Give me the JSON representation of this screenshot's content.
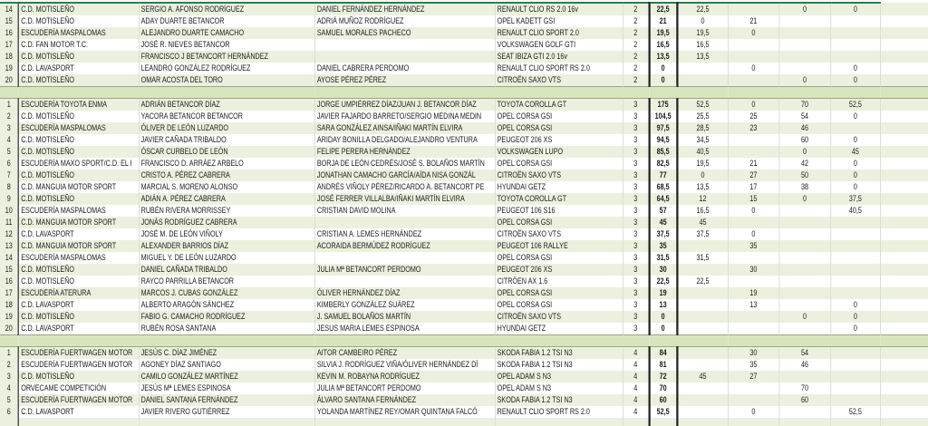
{
  "colors": {
    "stripe": "#ebf1de",
    "band": "#d8e4bc",
    "accent_line": "#2e7d4a"
  },
  "groups": [
    {
      "rows": [
        {
          "pos": "14",
          "club": "C.D. MOTISLEÑO",
          "driver": "SERGIO A. AFONSO RODRÍGUEZ",
          "codriver": "DANIEL FERNÁNDEZ HERNÁNDEZ",
          "car": "RENAULT CLIO RS 2.0 16v",
          "cat": "2",
          "pts": "22,5",
          "r": [
            "22,5",
            "",
            "0",
            "0",
            ""
          ]
        },
        {
          "pos": "15",
          "club": "C.D. MOTISLEÑO",
          "driver": "ADAY DUARTE BETANCOR",
          "codriver": "ADRIÁ MUÑOZ RODRÍGUEZ",
          "car": "OPEL KADETT GSI",
          "cat": "2",
          "pts": "21",
          "r": [
            "0",
            "21",
            "",
            "",
            ""
          ]
        },
        {
          "pos": "16",
          "club": "ESCUDERÍA MASPALOMAS",
          "driver": "ALEJANDRO DUARTE CAMACHO",
          "codriver": "SAMUEL MORALES PACHECO",
          "car": "RENAULT CLIO SPORT 2.0",
          "cat": "2",
          "pts": "19,5",
          "r": [
            "19,5",
            "0",
            "",
            "",
            ""
          ]
        },
        {
          "pos": "17",
          "club": "C.D. FAN MOTOR T.C.",
          "driver": "JOSÉ R. NIEVES BETANCOR",
          "codriver": "",
          "car": "VOLKSWAGEN GOLF GTI",
          "cat": "2",
          "pts": "16,5",
          "r": [
            "16,5",
            "",
            "",
            "",
            ""
          ]
        },
        {
          "pos": "18",
          "club": "C.D. MOTISLEÑO",
          "driver": "FRANCISCO J BETANCORT HERNÁNDEZ",
          "codriver": "",
          "car": "SEAT IBIZA GTI 2.0 16v",
          "cat": "2",
          "pts": "13,5",
          "r": [
            "13,5",
            "",
            "",
            "",
            ""
          ]
        },
        {
          "pos": "19",
          "club": "C.D. LAVASPORT",
          "driver": "LEANDRO GONZÁLEZ RODRÍGUEZ",
          "codriver": "DANIEL CABRERA PERDOMO",
          "car": "RENAULT CLIO SPORT RS 2.0",
          "cat": "2",
          "pts": "0",
          "r": [
            "",
            "0",
            "",
            "0",
            ""
          ]
        },
        {
          "pos": "20",
          "club": "C.D. MOTISLEÑO",
          "driver": "OMAR ACOSTA DEL TORO",
          "codriver": "AYOSE PÉREZ PÉREZ",
          "car": "CITROËN SAXO VTS",
          "cat": "2",
          "pts": "0",
          "r": [
            "",
            "",
            "0",
            "0",
            ""
          ]
        }
      ]
    },
    {
      "rows": [
        {
          "pos": "1",
          "club": "ESCUDERÍA TOYOTA ENMA",
          "driver": "ADRIÁN BETANCOR DÍAZ",
          "codriver": "JORGE UMPIÉRREZ DÍAZ/JUAN J. BETANCOR DÍAZ",
          "car": "TOYOTA COROLLA GT",
          "cat": "3",
          "pts": "175",
          "r": [
            "52,5",
            "0",
            "70",
            "52,5",
            ""
          ]
        },
        {
          "pos": "2",
          "club": "C.D. MOTISLEÑO",
          "driver": "YACORA BETANCOR BETANCOR",
          "codriver": "JAVIER FAJARDO BARRETO/SERGIO MEDINA MEDIN",
          "car": "OPEL CORSA GSI",
          "cat": "3",
          "pts": "104,5",
          "r": [
            "25,5",
            "25",
            "54",
            "0",
            ""
          ]
        },
        {
          "pos": "3",
          "club": "ESCUDERÍA MASPALOMAS",
          "driver": "ÓLIVER DE LEÓN LUZARDO",
          "codriver": "SARA GONZÁLEZ AINSA/IÑAKI MARTÍN ELVIRA",
          "car": "OPEL CORSA GSI",
          "cat": "3",
          "pts": "97,5",
          "r": [
            "28,5",
            "23",
            "46",
            "",
            ""
          ]
        },
        {
          "pos": "4",
          "club": "C.D. MOTISLEÑO",
          "driver": "JAVIER CAÑADA TRIBALDO",
          "codriver": "ARIDAY BONILLA DELGADO/ALEJANDRO VENTURA",
          "car": "PEUGEOT 206 XS",
          "cat": "3",
          "pts": "94,5",
          "r": [
            "34,5",
            "",
            "60",
            "0",
            ""
          ]
        },
        {
          "pos": "5",
          "club": "C.D. MOTISLEÑO",
          "driver": "ÓSCAR CURBELO DE LEÓN",
          "codriver": "FELIPE PERERA HERNÁNDEZ",
          "car": "VOLKSWAGEN LUPO",
          "cat": "3",
          "pts": "85,5",
          "r": [
            "40,5",
            "",
            "0",
            "45",
            ""
          ]
        },
        {
          "pos": "6",
          "club": "ESCUDERÍA MAXO SPORT/C.D. EL I",
          "driver": "FRANCISCO D. ARRÁEZ ARBELO",
          "codriver": "BORJA DE LEÓN CEDRÉS/JOSÉ S. BOLAÑOS MARTÍN",
          "car": "OPEL CORSA GSI",
          "cat": "3",
          "pts": "82,5",
          "r": [
            "19,5",
            "21",
            "42",
            "0",
            ""
          ]
        },
        {
          "pos": "7",
          "club": "C.D. MOTISLEÑO",
          "driver": "CRISTO A. PÉREZ CABRERA",
          "codriver": "JONATHAN CAMACHO GARCÍA/AÍDA NISA GONZÁL",
          "car": "CITROËN SAXO VTS",
          "cat": "3",
          "pts": "77",
          "r": [
            "0",
            "27",
            "50",
            "0",
            ""
          ]
        },
        {
          "pos": "8",
          "club": "C.D. MANGUIA MOTOR SPORT",
          "driver": "MARCIAL S. MORENO ALONSO",
          "codriver": "ANDRÉS VIÑOLY PÉREZ/RICARDO A. BETANCORT PE",
          "car": "HYUNDAI GETZ",
          "cat": "3",
          "pts": "68,5",
          "r": [
            "13,5",
            "17",
            "38",
            "0",
            ""
          ]
        },
        {
          "pos": "9",
          "club": "C.D. MOTISLEÑO",
          "driver": "ADIÁN A. PÉREZ CABRERA",
          "codriver": "JOSÉ FERRER VILLALBA/IÑAKI MARTÍN ELVIRA",
          "car": "TOYOTA COROLLA GT",
          "cat": "3",
          "pts": "64,5",
          "r": [
            "12",
            "15",
            "0",
            "37,5",
            ""
          ]
        },
        {
          "pos": "10",
          "club": "ESCUDERÍA MASPALOMAS",
          "driver": "RUBÉN RIVERA MORRISSEY",
          "codriver": "CRISTIAN DAVID MOLINA",
          "car": "PEUGEOT 106 S16",
          "cat": "3",
          "pts": "57",
          "r": [
            "16,5",
            "0",
            "",
            "40,5",
            ""
          ]
        },
        {
          "pos": "11",
          "club": "C.D. MANGUIA MOTOR SPORT",
          "driver": "JONÁS RODRÍGUEZ CABRERA",
          "codriver": "",
          "car": "OPEL CORSA GSI",
          "cat": "3",
          "pts": "45",
          "r": [
            "45",
            "",
            "",
            "",
            ""
          ]
        },
        {
          "pos": "12",
          "club": "C.D. LAVASPORT",
          "driver": "JOSÉ M. DE LEÓN VIÑOLY",
          "codriver": "CRISTIAN A. LEMES HERNÁNDEZ",
          "car": "CITROËN SAXO VTS",
          "cat": "3",
          "pts": "37,5",
          "r": [
            "37,5",
            "0",
            "",
            "",
            ""
          ]
        },
        {
          "pos": "13",
          "club": "C.D. MANGUIA MOTOR SPORT",
          "driver": "ALEXANDER BARRIOS DÍAZ",
          "codriver": "ACORAIDA BERMÚDEZ RODRÍGUEZ",
          "car": "PEUGEOT 106 RALLYE",
          "cat": "3",
          "pts": "35",
          "r": [
            "",
            "35",
            "",
            "",
            ""
          ]
        },
        {
          "pos": "14",
          "club": "ESCUDERÍA MASPALOMAS",
          "driver": "MIGUEL Y. DE LEÓN LUZARDO",
          "codriver": "",
          "car": "OPEL CORSA GSI",
          "cat": "3",
          "pts": "31,5",
          "r": [
            "31,5",
            "",
            "",
            "",
            ""
          ]
        },
        {
          "pos": "15",
          "club": "C.D. MOTISLEÑO",
          "driver": "DANIEL CAÑADA TRIBALDO",
          "codriver": "JULIA Mª BETANCORT PERDOMO",
          "car": "PEUGEOT 206 XS",
          "cat": "3",
          "pts": "30",
          "r": [
            "",
            "30",
            "",
            "",
            ""
          ]
        },
        {
          "pos": "16",
          "club": "C.D. MOTISLEÑO",
          "driver": "RAYCO PARRILLA BETANCOR",
          "codriver": "",
          "car": "CITRÖEN AX 1.6",
          "cat": "3",
          "pts": "22,5",
          "r": [
            "22,5",
            "",
            "",
            "",
            ""
          ]
        },
        {
          "pos": "17",
          "club": "ESCUDERÍA ATERURA",
          "driver": "MARCOS J. CUBAS GONZÁLEZ",
          "codriver": "ÓLIVER HERNÁNDEZ DÍAZ",
          "car": "OPEL CORSA GSI",
          "cat": "3",
          "pts": "19",
          "r": [
            "",
            "19",
            "",
            "",
            ""
          ]
        },
        {
          "pos": "18",
          "club": "C.D. LAVASPORT",
          "driver": "ALBERTO ARAGÓN SÁNCHEZ",
          "codriver": "KIMBERLY GONZÁLEZ SUÁREZ",
          "car": "OPEL CORSA GSI",
          "cat": "3",
          "pts": "13",
          "r": [
            "",
            "13",
            "",
            "0",
            ""
          ]
        },
        {
          "pos": "19",
          "club": "C.D. MOTISLEÑO",
          "driver": "FABIO G. CAMACHO RODRÍGUEZ",
          "codriver": "J. SAMUEL BOLAÑOS MARTÍN",
          "car": "CITROËN SAXO VTS",
          "cat": "3",
          "pts": "0",
          "r": [
            "",
            "",
            "0",
            "0",
            ""
          ]
        },
        {
          "pos": "20",
          "club": "C.D. LAVASPORT",
          "driver": "RUBÉN ROSA SANTANA",
          "codriver": "JESUS MARIA LEMES ESPINOSA",
          "car": "HYUNDAI GETZ",
          "cat": "3",
          "pts": "0",
          "r": [
            "",
            "",
            "",
            "0",
            ""
          ]
        }
      ]
    },
    {
      "rows": [
        {
          "pos": "1",
          "club": "ESCUDERÍA FUERTWAGEN MOTOR",
          "driver": "JESÚS C. DÍAZ  JIMÉNEZ",
          "codriver": "AITOR CAMBEIRO PÉREZ",
          "car": "SKODA FABIA 1.2 TSI N3",
          "cat": "4",
          "pts": "84",
          "r": [
            "",
            "30",
            "54",
            "",
            ""
          ]
        },
        {
          "pos": "2",
          "club": "ESCUDERÍA FUERTWAGEN MOTOR",
          "driver": "AGONEY DÍAZ SANTIAGO",
          "codriver": "SILVIA J. RODRÍGUEZ VIÑA/ÓLIVER HERNÁNDEZ DÍ",
          "car": "SKODA FABIA 1.2 TSI N3",
          "cat": "4",
          "pts": "81",
          "r": [
            "",
            "35",
            "46",
            "",
            ""
          ]
        },
        {
          "pos": "3",
          "club": "C.D. MOTISLEÑO",
          "driver": "CAMILO GONZÁLEZ MARTÍNEZ",
          "codriver": "KEVIN M. ROBAYNA RODRÍGUEZ",
          "car": "OPEL ADAM S N3",
          "cat": "4",
          "pts": "72",
          "r": [
            "45",
            "27",
            "",
            "",
            ""
          ]
        },
        {
          "pos": "4",
          "club": "ORVECAME COMPETICIÓN",
          "driver": "JESÚS Mª LEMES ESPINOSA",
          "codriver": "JULIA Mª BETANCORT PERDOMO",
          "car": "OPEL ADAM S N3",
          "cat": "4",
          "pts": "70",
          "r": [
            "",
            "",
            "70",
            "",
            ""
          ]
        },
        {
          "pos": "5",
          "club": "ESCUDERÍA FUERTWAGEN MOTOR",
          "driver": "DANIEL SANTANA FERNÁNDEZ",
          "codriver": "ÁLVARO SANTANA  FERNÁNDEZ",
          "car": "SKODA FABIA 1.2 TSI N3",
          "cat": "4",
          "pts": "60",
          "r": [
            "",
            "",
            "60",
            "",
            ""
          ]
        },
        {
          "pos": "6",
          "club": "C.D. LAVASPORT",
          "driver": "JAVIER RIVERO GUTIÉRREZ",
          "codriver": "YOLANDA MARTÍNEZ REY/OMAR QUINTANA FALCÓ",
          "car": "RENAULT CLIO SPORT RS 2.0",
          "cat": "4",
          "pts": "52,5",
          "r": [
            "",
            "0",
            "",
            "52,5",
            ""
          ]
        }
      ]
    }
  ]
}
